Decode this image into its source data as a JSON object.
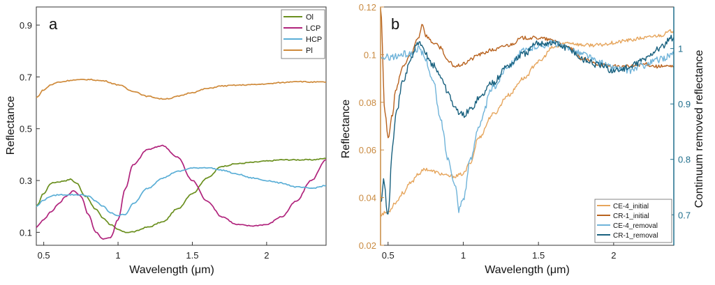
{
  "chart_data": [
    {
      "type": "line",
      "panel_letter": "a",
      "xlabel": "Wavelength (μm)",
      "ylabel": "Reflectance",
      "xlim": [
        0.45,
        2.4
      ],
      "ylim": [
        0.05,
        0.97
      ],
      "xticks": [
        0.5,
        1,
        1.5,
        2
      ],
      "xtick_labels": [
        "0.5",
        "1",
        "1.5",
        "2"
      ],
      "yticks": [
        0.1,
        0.3,
        0.5,
        0.7,
        0.9
      ],
      "ytick_labels": [
        "0.1",
        "0.3",
        "0.5",
        "0.7",
        "0.9"
      ],
      "legend_position": "top-right",
      "series": [
        {
          "name": "Ol",
          "color": "#6a8f1e",
          "x": [
            0.45,
            0.5,
            0.55,
            0.6,
            0.65,
            0.68,
            0.72,
            0.78,
            0.85,
            0.9,
            0.95,
            1.0,
            1.05,
            1.1,
            1.2,
            1.3,
            1.4,
            1.5,
            1.6,
            1.7,
            1.8,
            1.9,
            2.0,
            2.1,
            2.2,
            2.3,
            2.4
          ],
          "y": [
            0.2,
            0.25,
            0.29,
            0.295,
            0.3,
            0.305,
            0.29,
            0.24,
            0.19,
            0.155,
            0.13,
            0.11,
            0.1,
            0.102,
            0.12,
            0.14,
            0.19,
            0.25,
            0.31,
            0.355,
            0.365,
            0.37,
            0.375,
            0.38,
            0.38,
            0.38,
            0.385
          ]
        },
        {
          "name": "LCP",
          "color": "#b0237c",
          "x": [
            0.45,
            0.5,
            0.55,
            0.6,
            0.65,
            0.7,
            0.75,
            0.8,
            0.85,
            0.9,
            0.95,
            1.0,
            1.05,
            1.1,
            1.2,
            1.3,
            1.4,
            1.5,
            1.6,
            1.7,
            1.8,
            1.9,
            2.0,
            2.1,
            2.2,
            2.3,
            2.4
          ],
          "y": [
            0.12,
            0.15,
            0.18,
            0.21,
            0.24,
            0.26,
            0.24,
            0.17,
            0.1,
            0.075,
            0.08,
            0.15,
            0.27,
            0.36,
            0.42,
            0.435,
            0.39,
            0.3,
            0.22,
            0.16,
            0.13,
            0.125,
            0.13,
            0.16,
            0.22,
            0.3,
            0.38
          ]
        },
        {
          "name": "HCP",
          "color": "#5aaed6",
          "x": [
            0.45,
            0.5,
            0.55,
            0.6,
            0.65,
            0.7,
            0.75,
            0.8,
            0.85,
            0.9,
            0.95,
            1.0,
            1.05,
            1.1,
            1.2,
            1.3,
            1.4,
            1.5,
            1.6,
            1.7,
            1.8,
            1.9,
            2.0,
            2.1,
            2.2,
            2.3,
            2.4
          ],
          "y": [
            0.2,
            0.225,
            0.24,
            0.245,
            0.245,
            0.245,
            0.245,
            0.24,
            0.22,
            0.2,
            0.175,
            0.165,
            0.17,
            0.21,
            0.27,
            0.31,
            0.335,
            0.348,
            0.35,
            0.34,
            0.325,
            0.31,
            0.3,
            0.29,
            0.275,
            0.27,
            0.28
          ]
        },
        {
          "name": "Pl",
          "color": "#cf8a3a",
          "x": [
            0.45,
            0.5,
            0.55,
            0.6,
            0.7,
            0.8,
            0.9,
            1.0,
            1.1,
            1.2,
            1.3,
            1.35,
            1.4,
            1.5,
            1.6,
            1.7,
            1.8,
            1.9,
            2.0,
            2.1,
            2.2,
            2.3,
            2.4
          ],
          "y": [
            0.62,
            0.65,
            0.67,
            0.68,
            0.688,
            0.69,
            0.685,
            0.67,
            0.645,
            0.625,
            0.615,
            0.617,
            0.625,
            0.64,
            0.655,
            0.665,
            0.668,
            0.67,
            0.673,
            0.678,
            0.683,
            0.68,
            0.68
          ]
        }
      ]
    },
    {
      "type": "line",
      "panel_letter": "b",
      "xlabel": "Wavelength (μm)",
      "ylabel": "Reflectance",
      "y2label": "Continuum removed reflectance",
      "xlim": [
        0.45,
        2.4
      ],
      "ylim": [
        0.02,
        0.12
      ],
      "y2lim": [
        0.645,
        1.075
      ],
      "xticks": [
        0.5,
        1,
        1.5,
        2
      ],
      "xtick_labels": [
        "0.5",
        "1",
        "1.5",
        "2"
      ],
      "yticks": [
        0.02,
        0.04,
        0.06,
        0.08,
        0.1,
        0.12
      ],
      "ytick_labels": [
        "0.02",
        "0.04",
        "0.06",
        "0.08",
        "0.1",
        "0.12"
      ],
      "y2ticks": [
        0.7,
        0.8,
        0.9,
        1.0
      ],
      "y2tick_labels": [
        "0.7",
        "0.8",
        "0.9",
        "1"
      ],
      "legend_position": "bottom-right",
      "series": [
        {
          "name": "CE-4_initial",
          "color": "#e6a55c",
          "axis": "left",
          "x": [
            0.45,
            0.5,
            0.55,
            0.6,
            0.65,
            0.7,
            0.75,
            0.8,
            0.85,
            0.9,
            0.95,
            1.0,
            1.05,
            1.1,
            1.2,
            1.3,
            1.4,
            1.5,
            1.6,
            1.7,
            1.8,
            1.9,
            2.0,
            2.1,
            2.2,
            2.3,
            2.4
          ],
          "y": [
            0.033,
            0.034,
            0.038,
            0.042,
            0.046,
            0.05,
            0.052,
            0.051,
            0.05,
            0.049,
            0.049,
            0.05,
            0.055,
            0.065,
            0.075,
            0.083,
            0.09,
            0.097,
            0.103,
            0.105,
            0.104,
            0.104,
            0.105,
            0.106,
            0.107,
            0.108,
            0.11
          ]
        },
        {
          "name": "CR-1_initial",
          "color": "#b8621e",
          "axis": "left",
          "x": [
            0.45,
            0.48,
            0.5,
            0.53,
            0.55,
            0.6,
            0.65,
            0.7,
            0.73,
            0.75,
            0.8,
            0.85,
            0.9,
            0.95,
            1.0,
            1.05,
            1.1,
            1.2,
            1.3,
            1.4,
            1.5,
            1.6,
            1.7,
            1.8,
            1.9,
            2.0,
            2.1,
            2.2,
            2.3,
            2.4
          ],
          "y": [
            0.12,
            0.075,
            0.065,
            0.075,
            0.085,
            0.095,
            0.1,
            0.107,
            0.113,
            0.108,
            0.105,
            0.103,
            0.097,
            0.095,
            0.096,
            0.098,
            0.1,
            0.102,
            0.104,
            0.107,
            0.107,
            0.106,
            0.103,
            0.098,
            0.096,
            0.095,
            0.095,
            0.096,
            0.095,
            0.095
          ]
        },
        {
          "name": "CE-4_removal",
          "color": "#6fb3d9",
          "axis": "right",
          "x": [
            0.45,
            0.5,
            0.55,
            0.6,
            0.65,
            0.7,
            0.73,
            0.75,
            0.8,
            0.85,
            0.9,
            0.95,
            0.97,
            1.0,
            1.05,
            1.1,
            1.2,
            1.3,
            1.4,
            1.5,
            1.6,
            1.7,
            1.8,
            1.9,
            2.0,
            2.1,
            2.2,
            2.3,
            2.4
          ],
          "y": [
            0.98,
            0.985,
            0.985,
            0.99,
            0.99,
            1.0,
            0.99,
            0.98,
            0.94,
            0.87,
            0.8,
            0.75,
            0.71,
            0.73,
            0.8,
            0.86,
            0.93,
            0.97,
            0.995,
            1.005,
            1.01,
            1.0,
            0.99,
            0.975,
            0.965,
            0.96,
            0.97,
            0.98,
            0.99
          ]
        },
        {
          "name": "CR-1_removal",
          "color": "#18607e",
          "axis": "right",
          "x": [
            0.45,
            0.47,
            0.5,
            0.53,
            0.55,
            0.6,
            0.65,
            0.7,
            0.73,
            0.75,
            0.8,
            0.85,
            0.9,
            0.95,
            1.0,
            1.05,
            1.1,
            1.2,
            1.3,
            1.4,
            1.5,
            1.6,
            1.7,
            1.8,
            1.9,
            2.0,
            2.1,
            2.2,
            2.3,
            2.4
          ],
          "y": [
            0.72,
            0.76,
            0.7,
            0.82,
            0.88,
            0.94,
            0.98,
            1.01,
            1.0,
            0.99,
            0.97,
            0.95,
            0.92,
            0.89,
            0.88,
            0.89,
            0.91,
            0.94,
            0.97,
            0.99,
            1.01,
            1.01,
            1.0,
            0.98,
            0.97,
            0.96,
            0.965,
            0.98,
            1.0,
            1.02
          ]
        }
      ]
    }
  ]
}
